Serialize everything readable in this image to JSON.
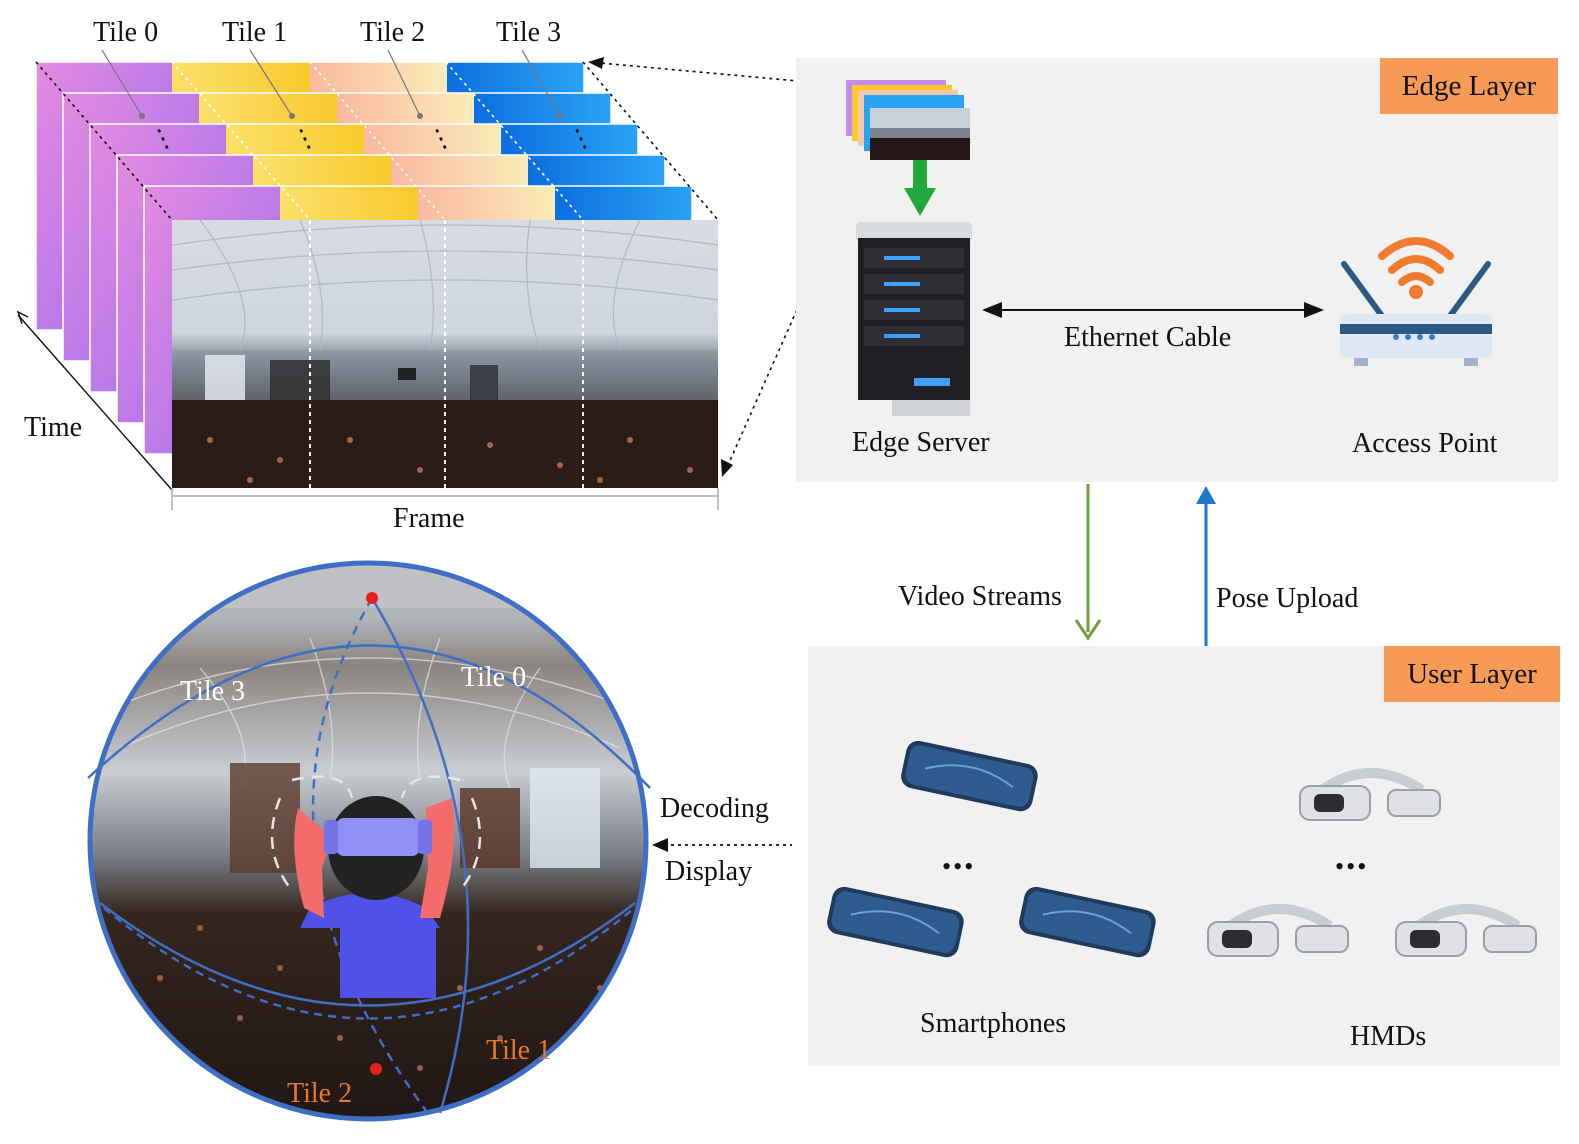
{
  "frame_stack": {
    "tile_labels": [
      "Tile 0",
      "Tile 1",
      "Tile 2",
      "Tile 3"
    ],
    "time_label": "Time",
    "frame_label": "Frame",
    "ellipsis": "⋮"
  },
  "edge_layer": {
    "badge": "Edge Layer",
    "server_label": "Edge Server",
    "cable_label": "Ethernet Cable",
    "ap_label": "Access Point"
  },
  "links": {
    "down_label": "Video Streams",
    "up_label": "Pose Upload",
    "down_color": "#70a03c",
    "up_color": "#1e78c8"
  },
  "user_layer": {
    "badge": "User Layer",
    "phones_label": "Smartphones",
    "hmds_label": "HMDs",
    "dots": "•••"
  },
  "sphere": {
    "tile_labels": [
      "Tile 3",
      "Tile 0",
      "Tile 1",
      "Tile 2"
    ],
    "decoding_label": "Decoding",
    "display_label": "Display",
    "tile_label_color": "#e6782a"
  },
  "colors": {
    "badge": "#f79a55",
    "panel": "#f1f1f1",
    "sphere_outline": "#3f6fc4"
  }
}
